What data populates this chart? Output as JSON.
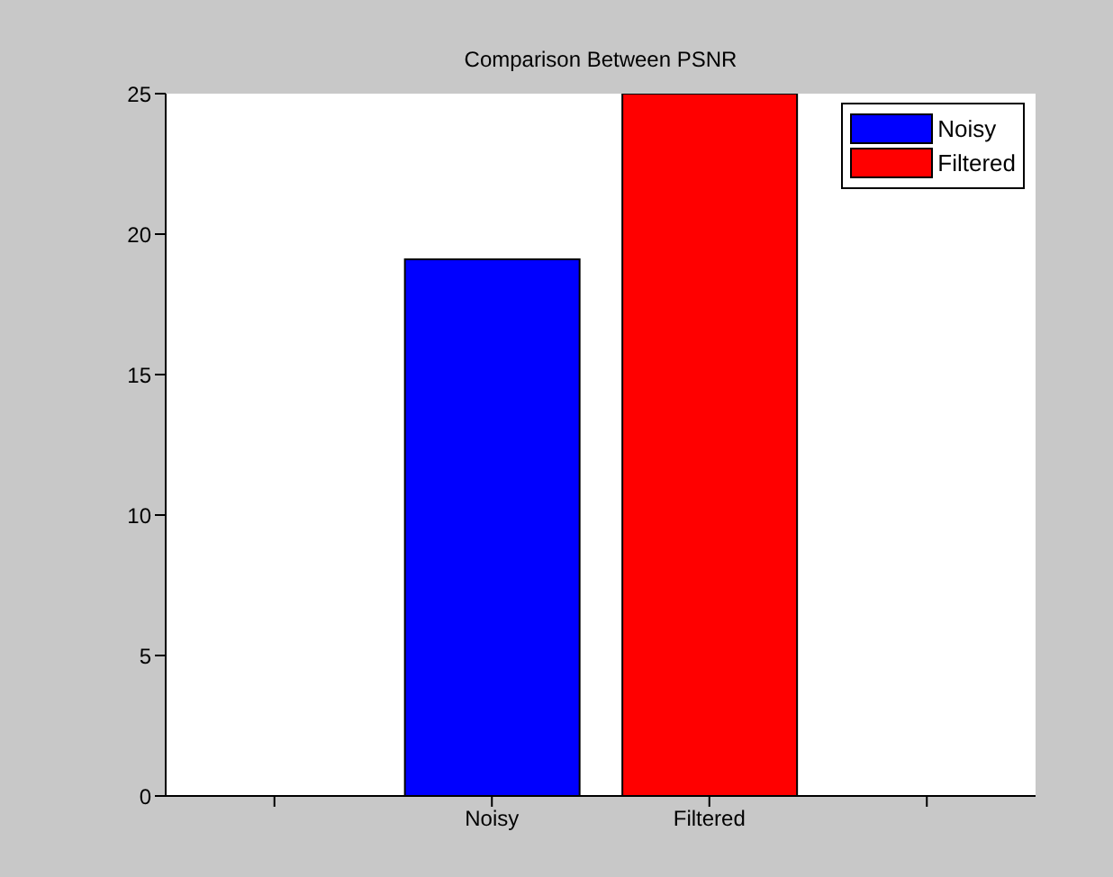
{
  "chart_data": {
    "type": "bar",
    "title": "Comparison Between PSNR",
    "categories": [
      null,
      "Noisy",
      "Filtered",
      null
    ],
    "series": [
      {
        "name": "Noisy",
        "color": "#0000ff",
        "values": [
          null,
          19.1,
          null,
          null
        ]
      },
      {
        "name": "Filtered",
        "color": "#ff0000",
        "values": [
          null,
          null,
          25,
          null
        ]
      }
    ],
    "ylim": [
      0,
      25
    ],
    "yticks": [
      0,
      5,
      10,
      15,
      20,
      25
    ],
    "legend": "top right"
  }
}
